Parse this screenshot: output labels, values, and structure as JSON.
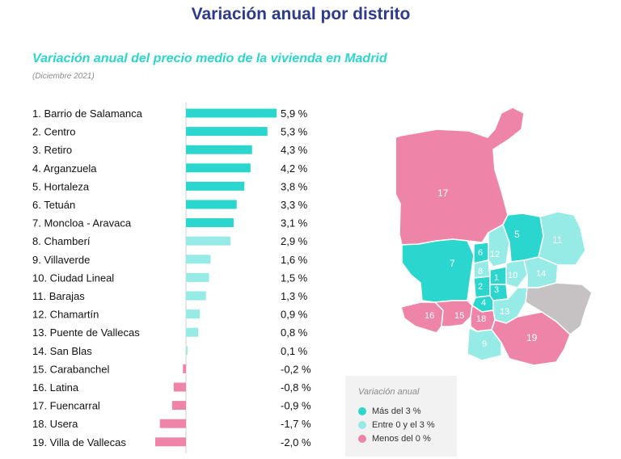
{
  "page": {
    "title": "Variación anual por distrito"
  },
  "chart_data": {
    "type": "bar",
    "orientation": "horizontal",
    "title": "Variación anual del precio medio de la vivienda en Madrid",
    "subtitle": "(Diciembre 2021)",
    "categories": [
      "1. Barrio de Salamanca",
      "2. Centro",
      "3. Retiro",
      "4. Arganzuela",
      "5. Hortaleza",
      "6. Tetuán",
      "7. Moncloa - Aravaca",
      "8. Chamberí",
      "9. Villaverde",
      "10. Ciudad Lineal",
      "11. Barajas",
      "12. Chamartín",
      "13. Puente de Vallecas",
      "14. San Blas",
      "15. Carabanchel",
      "16. Latina",
      "17. Fuencarral",
      "18. Usera",
      "19. Villa de Vallecas"
    ],
    "values": [
      5.9,
      5.3,
      4.3,
      4.2,
      3.8,
      3.3,
      3.1,
      2.9,
      1.6,
      1.5,
      1.3,
      0.9,
      0.8,
      0.1,
      -0.2,
      -0.8,
      -0.9,
      -1.7,
      -2.0
    ],
    "value_labels": [
      "5,9 %",
      "5,3 %",
      "4,3 %",
      "4,2 %",
      "3,8 %",
      "3,3 %",
      "3,1 %",
      "2,9 %",
      "1,6 %",
      "1,5 %",
      "1,3 %",
      "0,9 %",
      "0,8 %",
      "0,1 %",
      "-0,2 %",
      "-0,8 %",
      "-0,9 %",
      "-1,7 %",
      "-2,0 %"
    ],
    "categories_class": [
      "high",
      "high",
      "high",
      "high",
      "high",
      "high",
      "high",
      "mid",
      "mid",
      "mid",
      "mid",
      "mid",
      "mid",
      "mid",
      "low",
      "low",
      "low",
      "low",
      "low"
    ],
    "colors": {
      "high": "#2ad6cd",
      "mid": "#96ebe6",
      "low": "#ee85a8"
    },
    "xlabel": "",
    "ylabel": "",
    "xlim": [
      -2.0,
      5.9
    ],
    "grid": false
  },
  "map": {
    "district_labels": [
      "1",
      "2",
      "3",
      "4",
      "5",
      "6",
      "7",
      "8",
      "9",
      "10",
      "11",
      "12",
      "13",
      "14",
      "15",
      "16",
      "17",
      "18",
      "19"
    ],
    "colors": {
      "high": "#2ad6cd",
      "mid": "#96ebe6",
      "low": "#ee85a8",
      "nodata": "#c6c1c3",
      "border": "#ffffff"
    }
  },
  "legend": {
    "title": "Variación anual",
    "items": [
      {
        "label": "Más del 3 %",
        "color": "#2ad6cd"
      },
      {
        "label": "Entre 0 y el 3 %",
        "color": "#96ebe6"
      },
      {
        "label": "Menos del 0 %",
        "color": "#ee85a8"
      }
    ]
  }
}
